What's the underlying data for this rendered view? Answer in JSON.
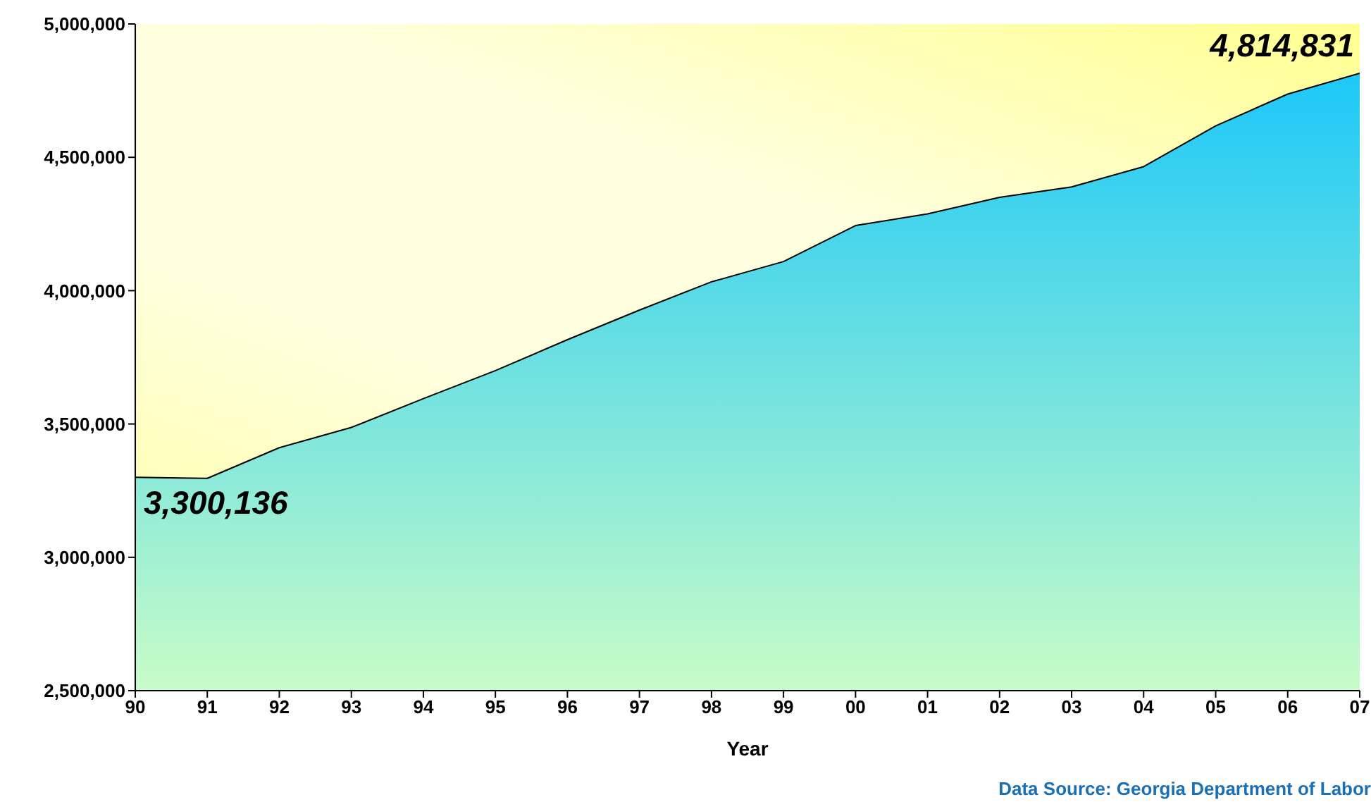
{
  "chart_data": {
    "type": "area",
    "xlabel": "Year",
    "categories": [
      "90",
      "91",
      "92",
      "93",
      "94",
      "95",
      "96",
      "97",
      "98",
      "99",
      "00",
      "01",
      "02",
      "03",
      "04",
      "05",
      "06",
      "07"
    ],
    "values": [
      3300136,
      3296000,
      3411000,
      3487000,
      3595000,
      3700000,
      3816000,
      3927000,
      4033000,
      4109000,
      4244000,
      4288000,
      4350000,
      4389000,
      4465000,
      4618000,
      4737000,
      4814831
    ],
    "color": "#1cc8f8",
    "ylim": [
      2500000,
      5000000
    ],
    "yticks": [
      {
        "value": 2500000,
        "label": "2,500,000"
      },
      {
        "value": 3000000,
        "label": "3,000,000"
      },
      {
        "value": 3500000,
        "label": "3,500,000"
      },
      {
        "value": 4000000,
        "label": "4,000,000"
      },
      {
        "value": 4500000,
        "label": "4,500,000"
      },
      {
        "value": 5000000,
        "label": "5,000,000"
      }
    ],
    "grid": false,
    "annotations": [
      {
        "text": "3,300,136",
        "x": "90",
        "y": 3300136
      },
      {
        "text": "4,814,831",
        "x": "07",
        "y": 4814831
      },
      "Data Source: Georgia Department of Labor"
    ]
  }
}
